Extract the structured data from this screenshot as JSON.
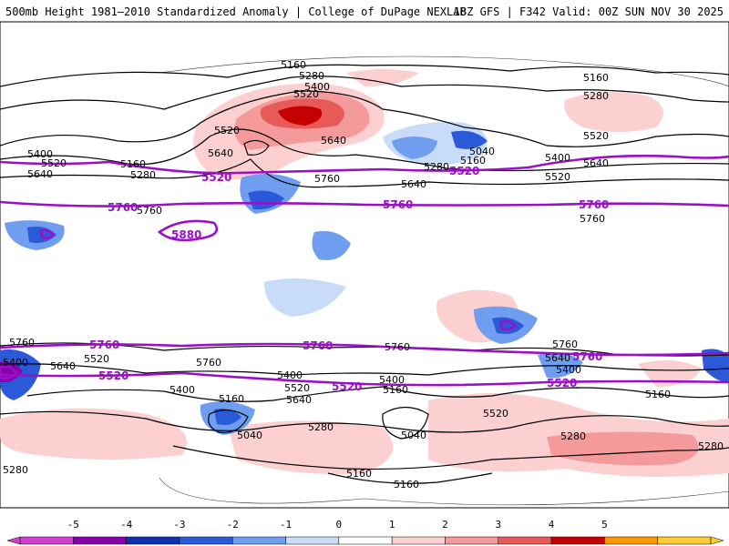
{
  "header": {
    "left_title": "500mb Height 1981–2010 Standardized Anomaly | College of DuPage NEXLAB",
    "right_title": "18Z GFS | F342 Valid: 00Z SUN NOV 30 2025"
  },
  "contour_labels": {
    "black": [
      "5160",
      "5280",
      "5400",
      "5520",
      "5640",
      "5760",
      "5040"
    ],
    "purple": [
      "5520",
      "5760",
      "5880"
    ]
  },
  "colorbar": {
    "ticks": [
      "-5",
      "-4",
      "-3",
      "-2",
      "-1",
      "0",
      "1",
      "2",
      "3",
      "4",
      "5"
    ],
    "colors": [
      "#d040d0",
      "#8800aa",
      "#1030b0",
      "#2a5ad8",
      "#6f9df0",
      "#c8dcfa",
      "#ffffff",
      "#fcd0d0",
      "#f49a9a",
      "#e85a5a",
      "#c40000",
      "#ff9900",
      "#ffcc33"
    ]
  },
  "colors": {
    "neg_light": "#c8dcfa",
    "neg_mid": "#6f9df0",
    "neg_dark": "#2a5ad8",
    "pos_light": "#fcd0d0",
    "pos_mid": "#f49a9a",
    "pos_dark": "#e85a5a",
    "pos_max": "#c40000",
    "purple_contour": "#9a10c8"
  }
}
